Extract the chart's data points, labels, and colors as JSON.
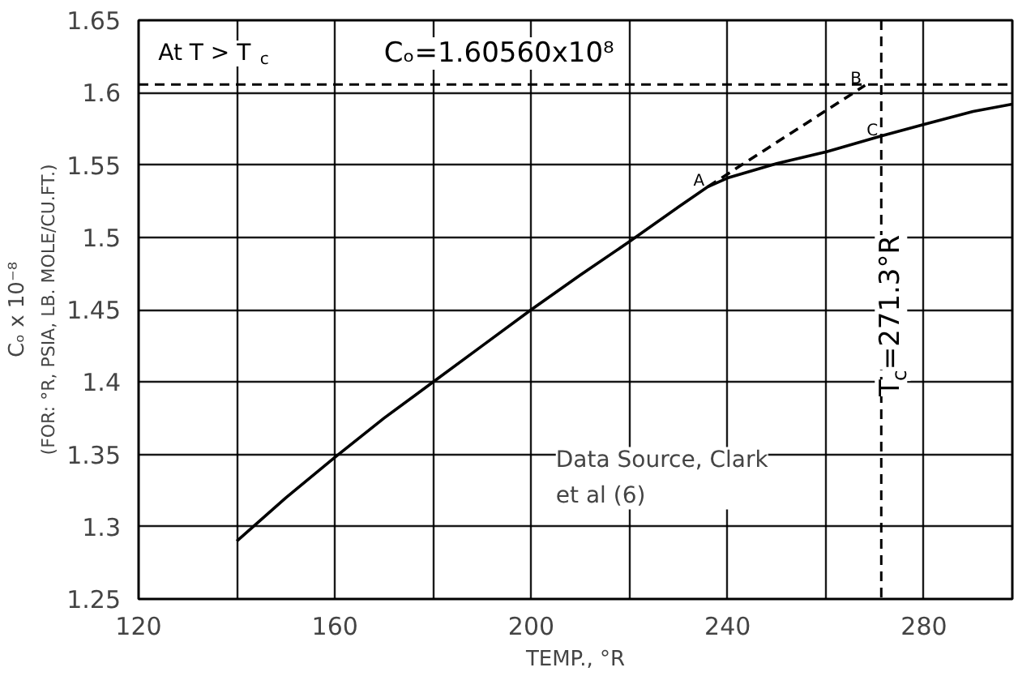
{
  "chart_data": {
    "type": "line",
    "xlabel": "TEMP., °R",
    "ylabel": "Cₒ x 10⁻⁸",
    "x": [
      140,
      150,
      160,
      170,
      180,
      190,
      200,
      210,
      220,
      230,
      236,
      240,
      250,
      260,
      271.3,
      280,
      290,
      298
    ],
    "series": [
      {
        "color": "#000000",
        "values": [
          1.29,
          1.32,
          1.348,
          1.375,
          1.4,
          1.425,
          1.45,
          1.474,
          1.497,
          1.521,
          1.535,
          1.541,
          1.551,
          1.559,
          1.57,
          1.578,
          1.587,
          1.592
        ]
      },
      {
        "type": "line",
        "line_style": "dashed",
        "color": "#000000",
        "x": [
          236,
          268
        ],
        "values": [
          1.535,
          1.605
        ]
      }
    ],
    "xlim": [
      120,
      298
    ],
    "ylim": [
      1.25,
      1.65
    ],
    "xticks": [
      120,
      {
        "value": 140,
        "label": null
      },
      160,
      {
        "value": 180,
        "label": null
      },
      200,
      {
        "value": 220,
        "label": null
      },
      240,
      {
        "value": 260,
        "label": null
      },
      280
    ],
    "yticks": [
      1.25,
      1.3,
      1.35,
      1.4,
      1.45,
      1.5,
      1.55,
      1.6,
      1.65
    ],
    "grid": true,
    "line_style": "solid",
    "marker": "none",
    "ref_lines": [
      {
        "axis": "y",
        "value": 1.6056,
        "label": null,
        "line_style": "dashed",
        "color": "#000000"
      },
      {
        "axis": "x",
        "value": 271.3,
        "label": "T$_{c}$=271.3°R",
        "line_style": "dashed",
        "color": "#000000"
      }
    ],
    "annotations": [
      "At T > T$_{c}$",
      "Cₒ=1.60560x10⁸",
      "Data Source, Clark\n et al (6)",
      "(FOR: °R, PSIA, LB. MOLE/CU.FT.)",
      {
        "text": "A",
        "x": 236,
        "y": 1.535
      },
      {
        "text": "B",
        "x": 268,
        "y": 1.6056
      },
      {
        "text": "C",
        "x": 271.3,
        "y": 1.57
      }
    ]
  }
}
